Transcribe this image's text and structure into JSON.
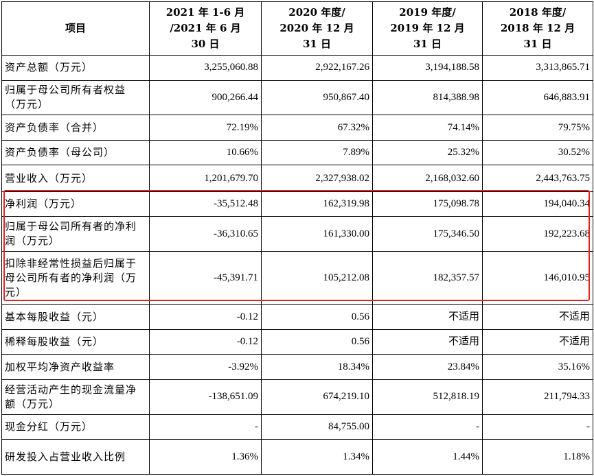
{
  "colors": {
    "highlight": "#e8211c",
    "border": "#000000",
    "text": "#000000"
  },
  "header": {
    "item": "项目",
    "periods": [
      [
        "2021 年 1-6 月",
        "/2021 年 6 月",
        "30 日"
      ],
      [
        "2020 年度/",
        "2020 年 12 月",
        "31 日"
      ],
      [
        "2019 年度/",
        "2019 年 12 月",
        "31 日"
      ],
      [
        "2018 年度/",
        "2018 年 12 月",
        "31 日"
      ]
    ]
  },
  "rows": [
    {
      "label": "资产总额（万元）",
      "values": [
        "3,255,060.88",
        "2,922,167.26",
        "3,194,188.58",
        "3,313,865.71"
      ]
    },
    {
      "label": "归属于母公司所有者权益（万元）",
      "values": [
        "900,266.44",
        "950,867.40",
        "814,388.98",
        "646,883.91"
      ]
    },
    {
      "label": "资产负债率（合并）",
      "values": [
        "72.19%",
        "67.32%",
        "74.14%",
        "79.75%"
      ]
    },
    {
      "label": "资产负债率（母公司）",
      "values": [
        "10.66%",
        "7.89%",
        "25.32%",
        "30.52%"
      ]
    },
    {
      "label": "营业收入（万元）",
      "values": [
        "1,201,679.70",
        "2,327,938.02",
        "2,168,032.60",
        "2,443,763.75"
      ]
    },
    {
      "label": "净利润（万元）",
      "values": [
        "-35,512.48",
        "162,319.98",
        "175,098.78",
        "194,040.34"
      ],
      "highlighted": true
    },
    {
      "label": "归属于母公司所有者的净利润（万元）",
      "values": [
        "-36,310.65",
        "161,330.00",
        "175,346.50",
        "192,223.68"
      ],
      "highlighted": true
    },
    {
      "label": "扣除非经常性损益后归属于母公司所有者的净利润（万元）",
      "values": [
        "-45,391.71",
        "105,212.08",
        "182,357.57",
        "146,010.95"
      ],
      "highlighted": true
    },
    {
      "label": "基本每股收益（元）",
      "values": [
        "-0.12",
        "0.56",
        "不适用",
        "不适用"
      ]
    },
    {
      "label": "稀释每股收益（元）",
      "values": [
        "-0.12",
        "0.56",
        "不适用",
        "不适用"
      ]
    },
    {
      "label": "加权平均净资产收益率",
      "values": [
        "-3.92%",
        "18.34%",
        "23.84%",
        "35.16%"
      ]
    },
    {
      "label": "经营活动产生的现金流量净额（万元）",
      "values": [
        "-138,651.09",
        "674,219.10",
        "512,818.19",
        "211,794.33"
      ]
    },
    {
      "label": "现金分红（万元）",
      "values": [
        "-",
        "84,755.00",
        "-",
        "-"
      ]
    },
    {
      "label": "研发投入占营业收入比例",
      "values": [
        "1.36%",
        "1.34%",
        "1.44%",
        "1.18%"
      ]
    }
  ]
}
